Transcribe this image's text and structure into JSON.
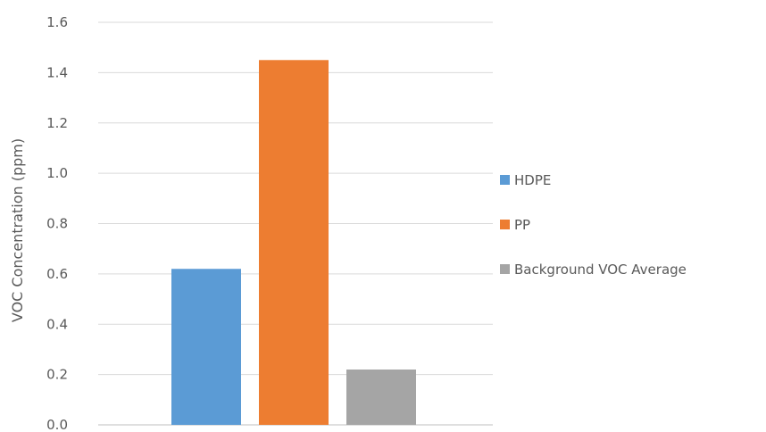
{
  "chart_data": {
    "type": "bar",
    "title": "",
    "xlabel": "",
    "ylabel": "VOC Concentration (ppm)",
    "ylim": [
      0,
      1.6
    ],
    "yticks": [
      "0.0",
      "0.2",
      "0.4",
      "0.6",
      "0.8",
      "1.0",
      "1.2",
      "1.4",
      "1.6"
    ],
    "grid": true,
    "legend_position": "right",
    "categories": [
      ""
    ],
    "series": [
      {
        "name": "HDPE",
        "values": [
          0.62
        ],
        "color": "#5b9bd5"
      },
      {
        "name": "PP",
        "values": [
          1.45
        ],
        "color": "#ed7d31"
      },
      {
        "name": "Background VOC Average",
        "values": [
          0.22
        ],
        "color": "#a5a5a5"
      }
    ]
  }
}
